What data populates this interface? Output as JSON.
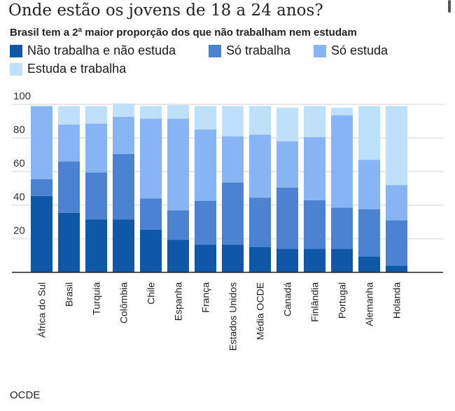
{
  "title": "Onde estão os jovens de 18 a 24 anos?",
  "subtitle": "Brasil tem a 2ª maior proporção dos que não trabalham nem estudam",
  "source": "OCDE",
  "legend": [
    {
      "label": "Não trabalha e não estuda",
      "color": "#0f58a8"
    },
    {
      "label": "Só trabalha",
      "color": "#4b82d2"
    },
    {
      "label": "Só estuda",
      "color": "#86b4f4"
    },
    {
      "label": "Estuda e trabalha",
      "color": "#bfe0fb"
    }
  ],
  "chart_data": {
    "type": "bar",
    "stacked": true,
    "title": "Onde estão os jovens de 18 a 24 anos?",
    "xlabel": "",
    "ylabel": "",
    "ylim": [
      0,
      100
    ],
    "yticks": [
      20,
      40,
      60,
      80,
      100
    ],
    "grid": true,
    "categories": [
      "África do Sul",
      "Brasil",
      "Turquia",
      "Colômbia",
      "Chile",
      "Espanha",
      "França",
      "Estados Unidos",
      "Média OCDE",
      "Canadá",
      "Finlândia",
      "Portugal",
      "Alemanha",
      "Holanda"
    ],
    "series": [
      {
        "name": "Não trabalha e não estuda",
        "values": [
          45.5,
          35.5,
          31.5,
          31.5,
          25.5,
          19.5,
          16.5,
          16.5,
          15,
          14,
          14,
          14,
          9.5,
          4
        ]
      },
      {
        "name": "Só trabalha",
        "values": [
          10,
          30.5,
          28,
          39,
          18.5,
          17.5,
          26,
          37,
          29.5,
          36.5,
          29,
          24.5,
          28,
          27
        ]
      },
      {
        "name": "Só estuda",
        "values": [
          43.5,
          22,
          29,
          22,
          47.5,
          54.5,
          42.5,
          27.5,
          37.5,
          27.5,
          37.5,
          55,
          29.5,
          21
        ]
      },
      {
        "name": "Estuda e trabalha",
        "values": [
          0,
          11,
          10.5,
          8,
          7.5,
          8,
          14,
          18,
          17,
          20,
          18.5,
          4.5,
          32,
          47
        ]
      }
    ]
  }
}
